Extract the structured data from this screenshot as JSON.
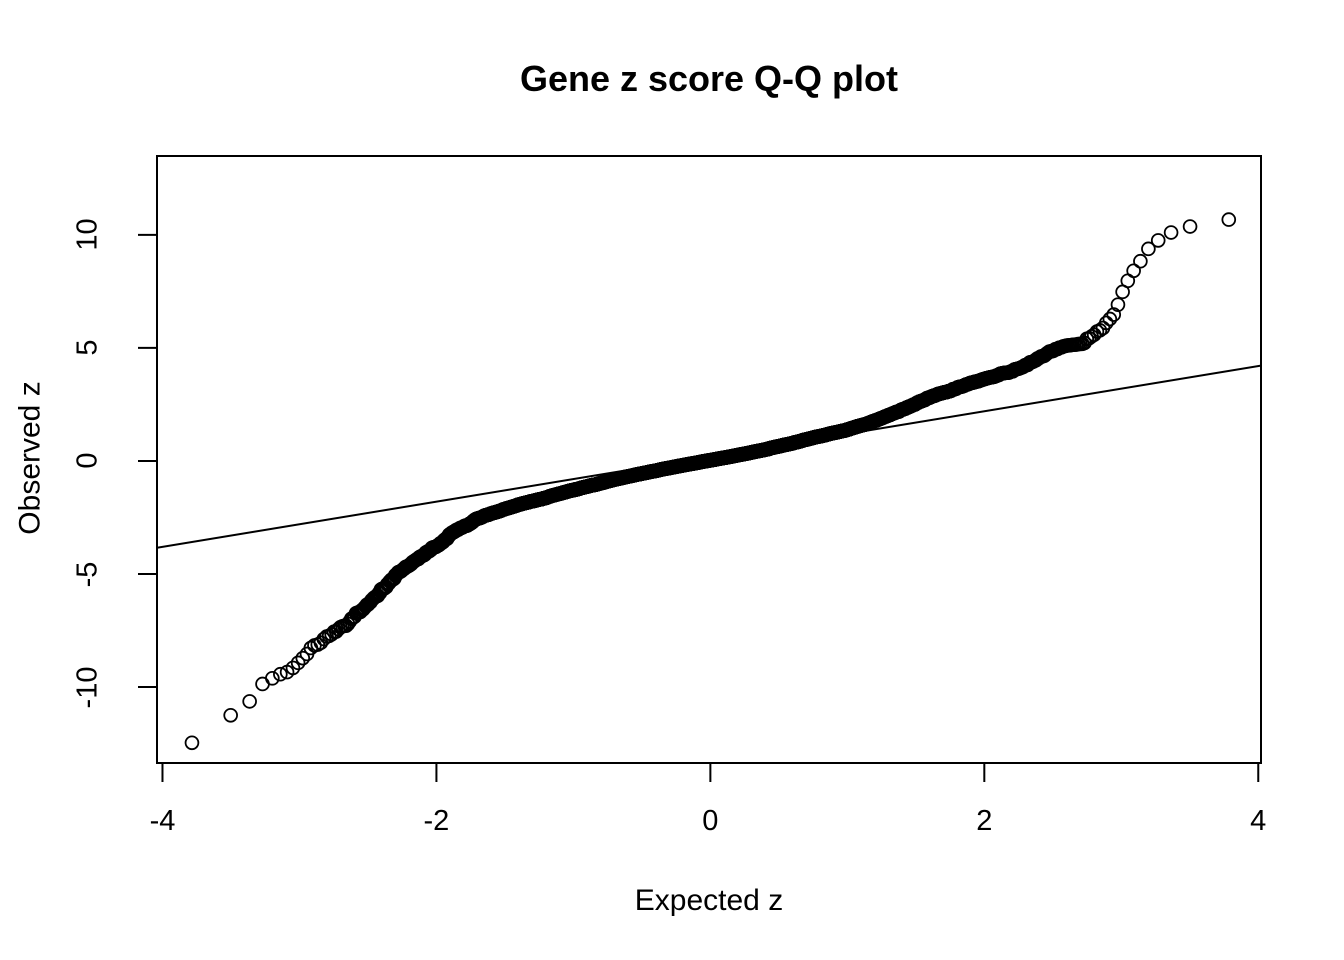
{
  "page": {
    "background": "#ffffff"
  },
  "chart_data": {
    "type": "scatter",
    "subtype": "qq-plot",
    "title": "Gene z score Q-Q plot",
    "xlabel": "Expected z",
    "ylabel": "Observed z",
    "xlim": [
      -4.04,
      4.02
    ],
    "ylim": [
      -13.36,
      13.49
    ],
    "x_ticks": [
      -4,
      -2,
      0,
      2,
      4
    ],
    "y_ticks": [
      -10,
      -5,
      0,
      5,
      10
    ],
    "grid": false,
    "legend": null,
    "marker": "open-circle",
    "point_count": 6500,
    "reference_line": {
      "slope": 1.0,
      "intercept": 0.2
    },
    "curve_landmarks": [
      [
        -3.8,
        -12.55
      ],
      [
        -3.57,
        -11.4
      ],
      [
        -3.46,
        -11.15
      ],
      [
        -3.38,
        -10.7
      ],
      [
        -3.3,
        -10.52
      ],
      [
        -3.27,
        -9.88
      ],
      [
        -3.21,
        -9.62
      ],
      [
        -3.15,
        -9.46
      ],
      [
        -3.09,
        -9.32
      ],
      [
        -3.03,
        -9.1
      ],
      [
        -2.98,
        -8.75
      ],
      [
        -2.93,
        -8.4
      ],
      [
        -2.85,
        -8.0
      ],
      [
        -2.75,
        -7.55
      ],
      [
        -2.64,
        -7.05
      ],
      [
        -2.5,
        -6.3
      ],
      [
        -2.35,
        -5.4
      ],
      [
        -2.27,
        -4.95
      ],
      [
        -2.1,
        -4.15
      ],
      [
        -2.0,
        -3.75
      ],
      [
        -1.85,
        -3.05
      ],
      [
        -1.69,
        -2.52
      ],
      [
        -1.5,
        -2.1
      ],
      [
        -1.3,
        -1.78
      ],
      [
        -1.0,
        -1.28
      ],
      [
        -0.74,
        -0.86
      ],
      [
        -0.52,
        -0.56
      ],
      [
        -0.25,
        -0.25
      ],
      [
        0.0,
        0.03
      ],
      [
        0.3,
        0.36
      ],
      [
        0.6,
        0.78
      ],
      [
        0.85,
        1.15
      ],
      [
        1.09,
        1.52
      ],
      [
        1.4,
        2.25
      ],
      [
        1.67,
        3.0
      ],
      [
        1.9,
        3.4
      ],
      [
        2.1,
        3.72
      ],
      [
        2.3,
        4.25
      ],
      [
        2.47,
        4.7
      ],
      [
        2.65,
        5.1
      ],
      [
        2.77,
        5.42
      ],
      [
        2.88,
        6.0
      ],
      [
        2.95,
        6.55
      ],
      [
        3.0,
        7.3
      ],
      [
        3.04,
        7.9
      ],
      [
        3.08,
        8.3
      ],
      [
        3.12,
        8.65
      ],
      [
        3.17,
        9.1
      ],
      [
        3.22,
        9.6
      ],
      [
        3.28,
        9.8
      ],
      [
        3.35,
        10.05
      ],
      [
        3.45,
        10.33
      ],
      [
        3.57,
        10.45
      ],
      [
        3.8,
        10.7
      ]
    ],
    "noise": {
      "seed": 42,
      "amplitude": 0.28,
      "fade_start": 2.5,
      "fade_end": 3.0,
      "min_amplitude": 0.04
    },
    "colors": {
      "foreground": "#000000",
      "background": "#ffffff"
    }
  }
}
